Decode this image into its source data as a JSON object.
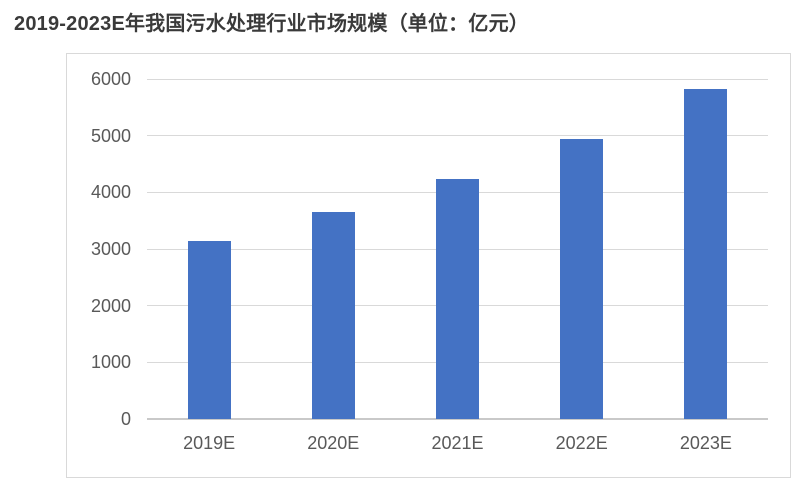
{
  "chart_data": {
    "type": "bar",
    "title": "2019-2023E年我国污水处理行业市场规模（单位：亿元）",
    "unit": "亿元",
    "categories": [
      "2019E",
      "2020E",
      "2021E",
      "2022E",
      "2023E"
    ],
    "values": [
      3140,
      3650,
      4240,
      4950,
      5830
    ],
    "series_name": "市场规模",
    "xlabel": "",
    "ylabel": "",
    "ylim": [
      0,
      6000
    ],
    "ytick_step": 1000,
    "yticks": [
      0,
      1000,
      2000,
      3000,
      4000,
      5000,
      6000
    ],
    "grid": true,
    "legend": false,
    "colors": {
      "bar": "#4472c4",
      "gridline": "#d9d9d9",
      "axis_line": "#c9c9c9",
      "tick_label": "#595959",
      "title": "#3a3a3a",
      "chart_border": "#d9d9d9",
      "background": "#ffffff"
    }
  }
}
